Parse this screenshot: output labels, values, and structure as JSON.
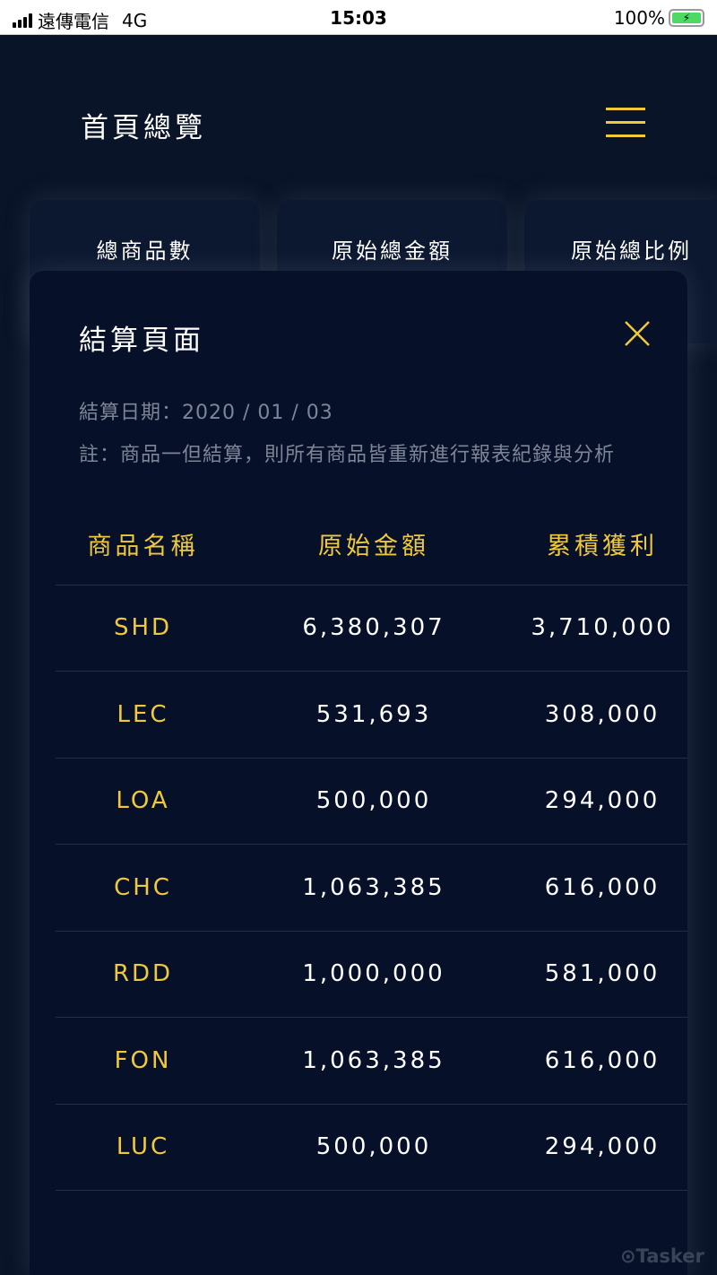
{
  "status_bar": {
    "carrier": "遠傳電信",
    "network": "4G",
    "time": "15:03",
    "battery": "100%"
  },
  "header": {
    "title": "首頁總覽",
    "menu_icon": "hamburger-icon"
  },
  "cards": [
    {
      "label": "總商品數"
    },
    {
      "label": "原始總金額"
    },
    {
      "label": "原始總比例"
    }
  ],
  "modal": {
    "title": "結算頁面",
    "close_icon": "close-icon",
    "date_line": "結算日期：2020 / 01 / 03",
    "note": "註：商品一但結算，則所有商品皆重新進行報表紀錄與分析",
    "table": {
      "headers": [
        "商品名稱",
        "原始金額",
        "累積獲利"
      ],
      "rows": [
        [
          "SHD",
          "6,380,307",
          "3,710,000"
        ],
        [
          "LEC",
          "531,693",
          "308,000"
        ],
        [
          "LOA",
          "500,000",
          "294,000"
        ],
        [
          "CHC",
          "1,063,385",
          "616,000"
        ],
        [
          "RDD",
          "1,000,000",
          "581,000"
        ],
        [
          "FON",
          "1,063,385",
          "616,000"
        ],
        [
          "LUC",
          "500,000",
          "294,000"
        ]
      ]
    }
  },
  "watermark": "Tasker",
  "colors": {
    "accent": "#f0c93a",
    "background": "#0a1428",
    "modal": "#061029",
    "muted": "#7d8596"
  }
}
